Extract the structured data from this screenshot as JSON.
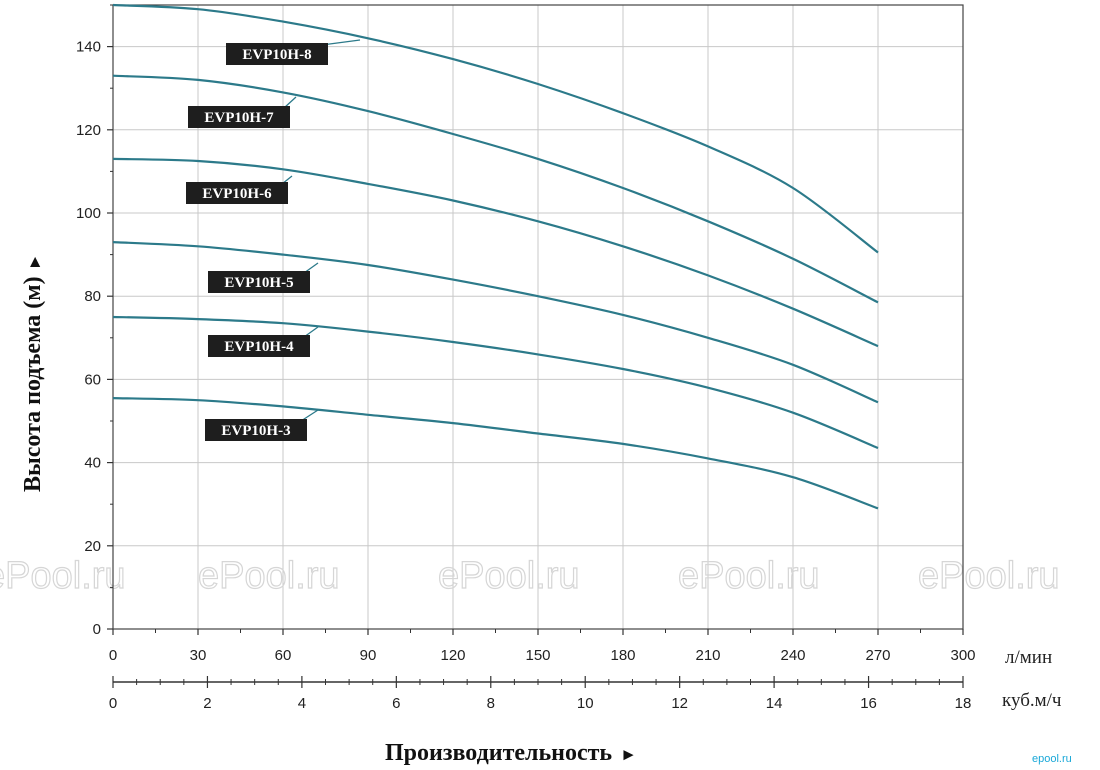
{
  "chart_data": {
    "type": "line",
    "ylabel": "Высота подъема (м)",
    "ylabel_arrow": "►",
    "xlabel": "Производительность",
    "xlabel_arrow": "►",
    "x_unit": "л/мин",
    "x2_unit": "куб.м/ч",
    "xlim": [
      0,
      300
    ],
    "ylim": [
      0,
      150
    ],
    "x_ticks": [
      0,
      30,
      60,
      90,
      120,
      150,
      180,
      210,
      240,
      270,
      300
    ],
    "y_ticks": [
      0,
      20,
      40,
      60,
      80,
      100,
      120,
      140
    ],
    "x2_ticks": [
      0,
      2,
      4,
      6,
      8,
      10,
      12,
      14,
      16,
      18
    ],
    "grid": true,
    "line_color": "#2c7a8a",
    "label_box_color": "#1e1e1e",
    "series": [
      {
        "name": "EVP10H-8",
        "x": [
          0,
          30,
          60,
          90,
          120,
          150,
          180,
          210,
          240,
          270
        ],
        "values": [
          150,
          149,
          146,
          142,
          137,
          131,
          124,
          116,
          106,
          90.5
        ]
      },
      {
        "name": "EVP10H-7",
        "x": [
          0,
          30,
          60,
          90,
          120,
          150,
          180,
          210,
          240,
          270
        ],
        "values": [
          133,
          132,
          129,
          124.5,
          119,
          113,
          106,
          98,
          89,
          78.5
        ]
      },
      {
        "name": "EVP10H-6",
        "x": [
          0,
          30,
          60,
          90,
          120,
          150,
          180,
          210,
          240,
          270
        ],
        "values": [
          113,
          112.5,
          110.5,
          107,
          103,
          98,
          92,
          85,
          77,
          68
        ]
      },
      {
        "name": "EVP10H-5",
        "x": [
          0,
          30,
          60,
          90,
          120,
          150,
          180,
          210,
          240,
          270
        ],
        "values": [
          93,
          92,
          90,
          87.5,
          84,
          80,
          75.5,
          70,
          63.5,
          54.5
        ]
      },
      {
        "name": "EVP10H-4",
        "x": [
          0,
          30,
          60,
          90,
          120,
          150,
          180,
          210,
          240,
          270
        ],
        "values": [
          75,
          74.5,
          73.5,
          71.5,
          69,
          66,
          62.5,
          58,
          52,
          43.5
        ]
      },
      {
        "name": "EVP10H-3",
        "x": [
          0,
          30,
          60,
          90,
          120,
          150,
          180,
          210,
          240,
          270
        ],
        "values": [
          55.5,
          55,
          53.5,
          51.5,
          49.5,
          47,
          44.5,
          41,
          36.5,
          29
        ]
      }
    ]
  },
  "watermark": {
    "text": "ePool.ru"
  },
  "corner_mark": "epool.ru"
}
